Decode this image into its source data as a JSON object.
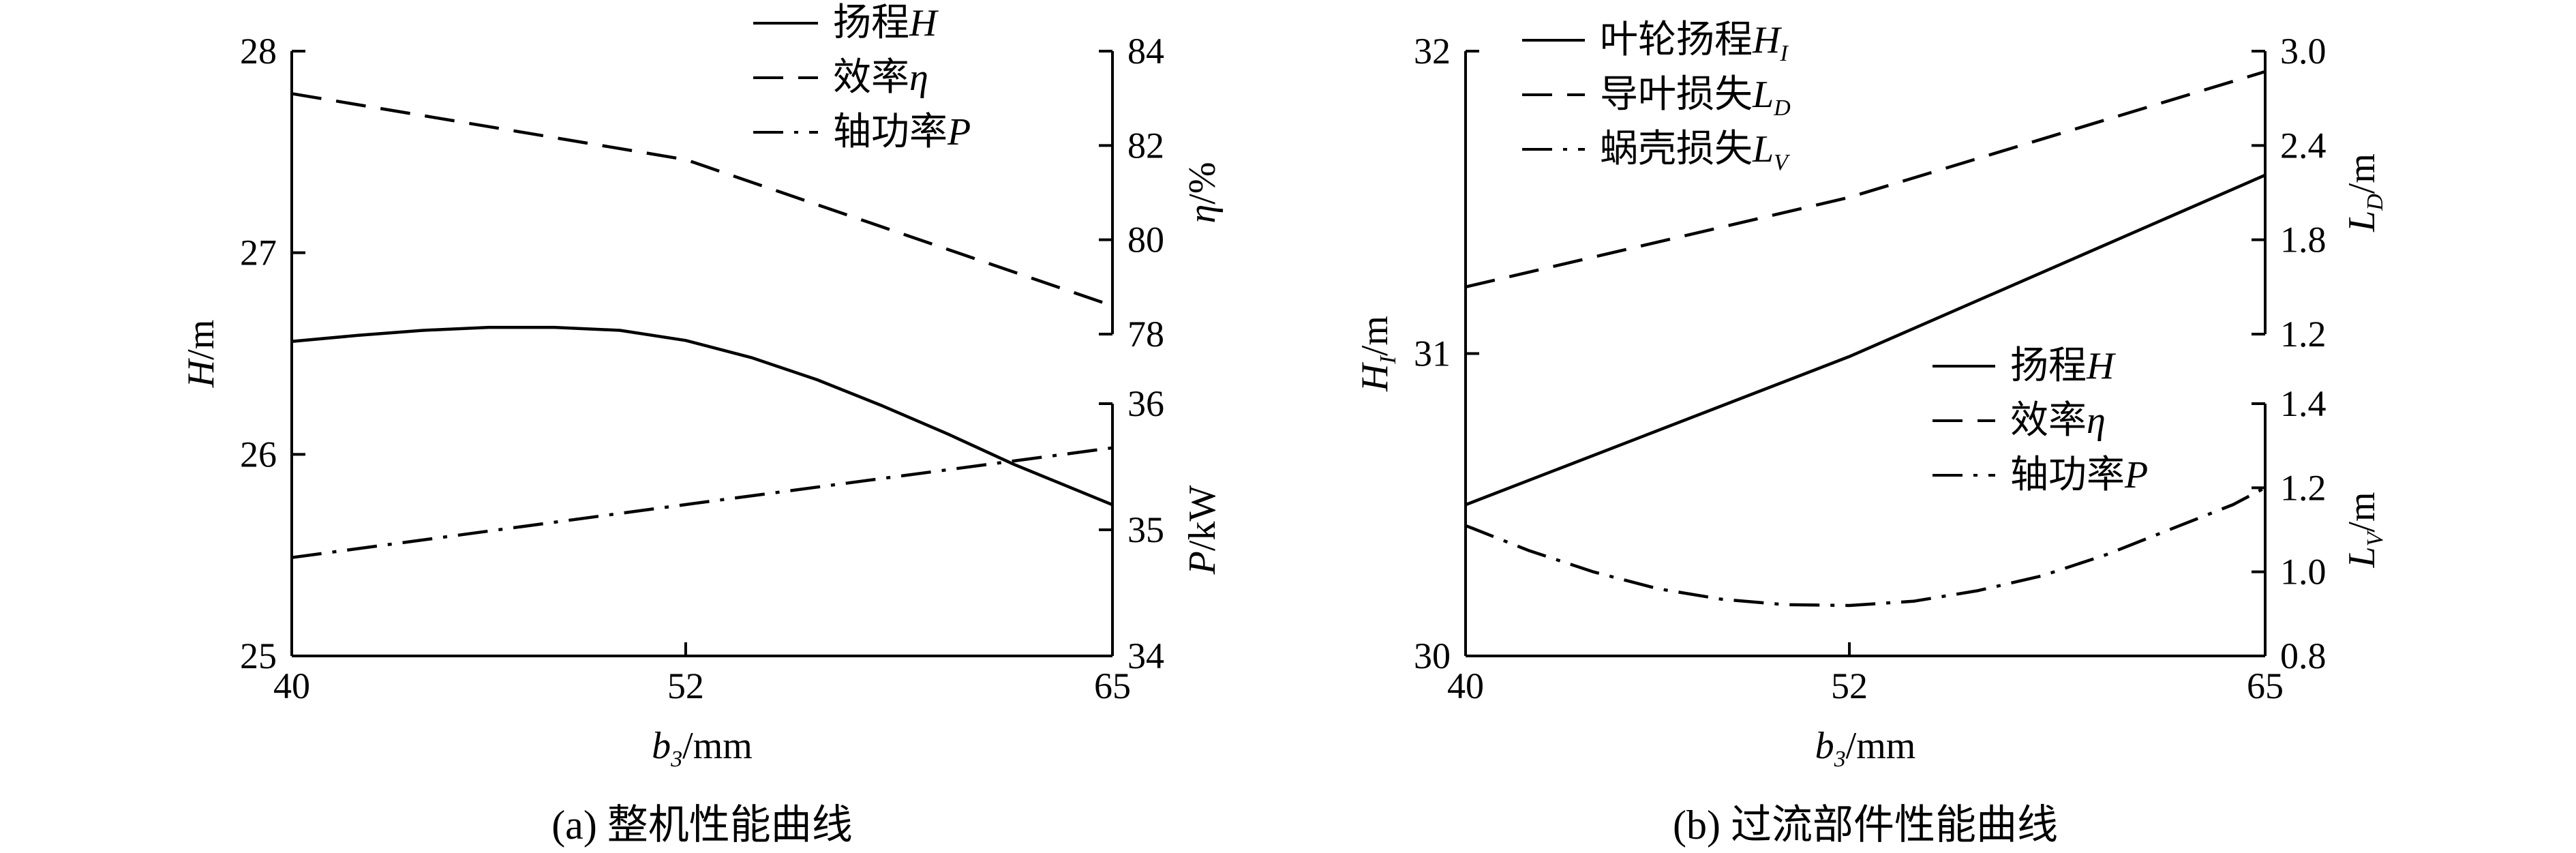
{
  "chart_data": [
    {
      "type": "line",
      "caption": "(a) 整机性能曲线",
      "x": [
        40,
        52,
        65
      ],
      "xlabel": {
        "main": "b",
        "sub": "3",
        "unit": "/mm"
      },
      "xticks": [
        "40",
        "52",
        "65"
      ],
      "xlim": [
        40,
        65
      ],
      "axes": {
        "left": {
          "ylim": [
            25,
            28
          ],
          "ticks": [
            "25",
            "26",
            "27",
            "28"
          ],
          "label": {
            "main": "H",
            "sub": "",
            "unit": "/m"
          }
        },
        "eta": {
          "ylim": [
            78,
            84
          ],
          "ticks": [
            "78",
            "80",
            "82",
            "84"
          ],
          "label": {
            "main": "η",
            "sub": "",
            "unit": "/%"
          }
        },
        "power": {
          "ylim": [
            34,
            36
          ],
          "ticks": [
            "34",
            "35",
            "36"
          ],
          "label": {
            "main": "P",
            "sub": "",
            "unit": "/kW"
          }
        }
      },
      "legend_position": "top-center",
      "series": [
        {
          "name": "扬程",
          "name_sym": "H",
          "style": "solid",
          "axis": "left",
          "x": [
            40,
            42,
            44,
            46,
            48,
            50,
            52,
            54,
            56,
            58,
            60,
            62,
            63.5,
            65
          ],
          "values": [
            26.56,
            26.59,
            26.615,
            26.63,
            26.63,
            26.615,
            26.565,
            26.48,
            26.37,
            26.24,
            26.1,
            25.95,
            25.85,
            25.75
          ]
        },
        {
          "name": "效率",
          "name_sym": "η",
          "style": "dashed",
          "axis": "eta",
          "x": [
            40,
            52,
            65
          ],
          "values": [
            83.1,
            81.7,
            78.6
          ]
        },
        {
          "name": "轴功率",
          "name_sym": "P",
          "style": "dashdot",
          "axis": "power",
          "x": [
            40,
            52,
            65
          ],
          "values": [
            34.78,
            35.2,
            35.65
          ]
        }
      ]
    },
    {
      "type": "line",
      "caption": "(b) 过流部件性能曲线",
      "x": [
        40,
        52,
        65
      ],
      "xlabel": {
        "main": "b",
        "sub": "3",
        "unit": "/mm"
      },
      "xticks": [
        "40",
        "52",
        "65"
      ],
      "xlim": [
        40,
        65
      ],
      "axes": {
        "left": {
          "ylim": [
            30,
            32
          ],
          "ticks": [
            "30",
            "31",
            "32"
          ],
          "label": {
            "main": "H",
            "sub": "I",
            "unit": "/m"
          }
        },
        "ld": {
          "ylim": [
            1.2,
            3.0
          ],
          "ticks": [
            "1.2",
            "1.8",
            "2.4",
            "3.0"
          ],
          "label": {
            "main": "L",
            "sub": "D",
            "unit": "/m"
          }
        },
        "lv": {
          "ylim": [
            0.8,
            1.4
          ],
          "ticks": [
            "0.8",
            "1.0",
            "1.2",
            "1.4"
          ],
          "label": {
            "main": "L",
            "sub": "V",
            "unit": "/m"
          }
        }
      },
      "legend_top": [
        {
          "name": "叶轮扬程",
          "sym": "H",
          "sub": "I",
          "style": "solid"
        },
        {
          "name": "导叶损失",
          "sym": "L",
          "sub": "D",
          "style": "dashed"
        },
        {
          "name": "蜗壳损失",
          "sym": "L",
          "sub": "V",
          "style": "dashdot"
        }
      ],
      "legend_bottom": [
        {
          "name": "扬程",
          "sym": "H",
          "sub": "",
          "style": "solid"
        },
        {
          "name": "效率",
          "sym": "η",
          "sub": "",
          "style": "dashed"
        },
        {
          "name": "轴功率",
          "sym": "P",
          "sub": "",
          "style": "dashdot"
        }
      ],
      "series": [
        {
          "name": "叶轮扬程H_I",
          "style": "solid",
          "axis": "left",
          "x": [
            40,
            52,
            65
          ],
          "values": [
            30.5,
            30.99,
            31.59
          ]
        },
        {
          "name": "导叶损失L_D",
          "style": "dashed",
          "axis": "ld",
          "x": [
            40,
            52,
            65
          ],
          "values": [
            1.5,
            2.07,
            2.87
          ]
        },
        {
          "name": "蜗壳损失L_V",
          "style": "dashdot",
          "axis": "lv",
          "x": [
            40,
            42,
            44,
            46,
            48,
            50,
            52,
            54,
            56,
            58,
            60,
            62,
            64,
            65
          ],
          "values": [
            1.11,
            1.05,
            1.0,
            0.96,
            0.935,
            0.922,
            0.92,
            0.93,
            0.955,
            0.99,
            1.04,
            1.1,
            1.16,
            1.2
          ]
        }
      ]
    }
  ]
}
